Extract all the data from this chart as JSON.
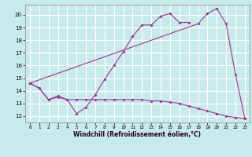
{
  "title": "",
  "xlabel": "Windchill (Refroidissement éolien,°C)",
  "background_color": "#c8eaea",
  "grid_color": "#ffffff",
  "line_color": "#993399",
  "xmin": -0.5,
  "xmax": 23.5,
  "ymin": 11.5,
  "ymax": 20.8,
  "yticks": [
    12,
    13,
    14,
    15,
    16,
    17,
    18,
    19,
    20
  ],
  "xticks": [
    0,
    1,
    2,
    3,
    4,
    5,
    6,
    7,
    8,
    9,
    10,
    11,
    12,
    13,
    14,
    15,
    16,
    17,
    18,
    19,
    20,
    21,
    22,
    23
  ],
  "line1_x": [
    0,
    1,
    2,
    3,
    4,
    5,
    6,
    7,
    8,
    9,
    10,
    11,
    12,
    13,
    14,
    15,
    16,
    17
  ],
  "line1_y": [
    14.6,
    14.2,
    13.3,
    13.6,
    13.3,
    12.2,
    12.7,
    13.7,
    14.9,
    16.0,
    17.1,
    18.3,
    19.2,
    19.2,
    19.9,
    20.1,
    19.4,
    19.4
  ],
  "line2_x": [
    0,
    1,
    2,
    3,
    4,
    5,
    6,
    7,
    8,
    9,
    10,
    11,
    12,
    13,
    14,
    15,
    16,
    17,
    18,
    19,
    20,
    21,
    22,
    23
  ],
  "line2_y": [
    14.6,
    14.2,
    13.3,
    13.5,
    13.3,
    13.3,
    13.3,
    13.3,
    13.3,
    13.3,
    13.3,
    13.3,
    13.3,
    13.2,
    13.2,
    13.1,
    13.0,
    12.8,
    12.6,
    12.4,
    12.2,
    12.0,
    11.9,
    11.8
  ],
  "line3_x": [
    0,
    18,
    19,
    20,
    21,
    22,
    23
  ],
  "line3_y": [
    14.6,
    19.3,
    20.1,
    20.5,
    19.3,
    15.3,
    11.8
  ]
}
